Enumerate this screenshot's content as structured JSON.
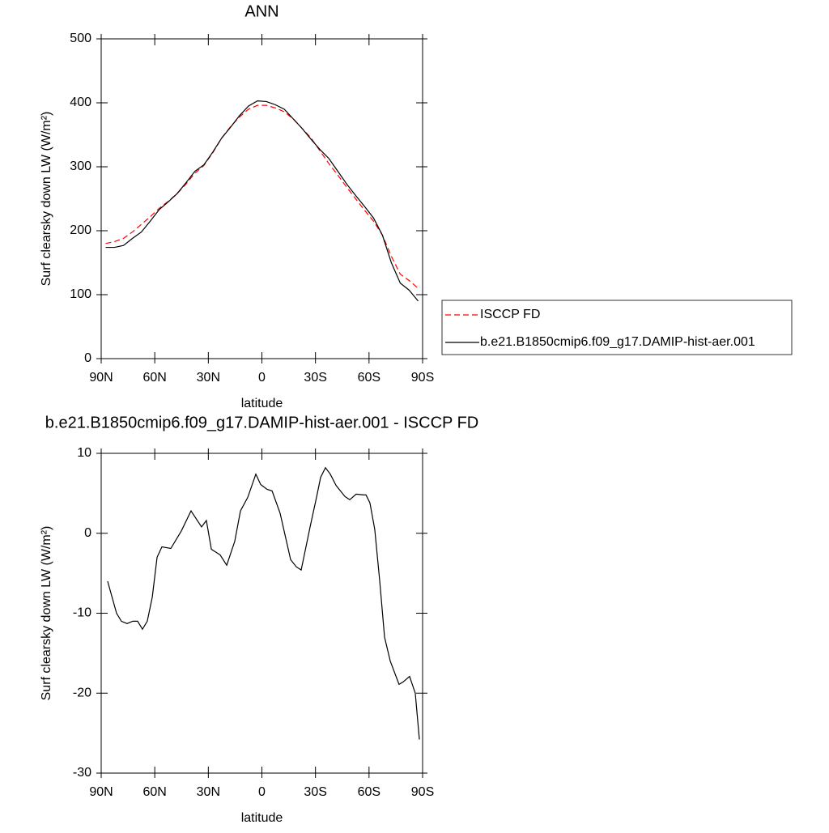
{
  "chart_data": [
    {
      "type": "line",
      "title": "ANN",
      "x_label": "latitude",
      "y_label": "Surf clearsky down LW (W/m²)",
      "xlim": [
        90,
        -90
      ],
      "ylim": [
        0,
        500
      ],
      "xticks": [
        {
          "value": 90,
          "label": "90N"
        },
        {
          "value": 60,
          "label": "60N"
        },
        {
          "value": 30,
          "label": "30N"
        },
        0,
        {
          "value": -30,
          "label": "30S"
        },
        {
          "value": -60,
          "label": "60S"
        },
        {
          "value": -90,
          "label": "90S"
        }
      ],
      "yticks": [
        0,
        100,
        200,
        300,
        400,
        500
      ],
      "legend": "right",
      "x": [
        87.5,
        82.5,
        77.5,
        72.5,
        67.5,
        62.5,
        57.5,
        52.5,
        47.5,
        42.5,
        37.5,
        32.5,
        27.5,
        22.5,
        17.5,
        12.5,
        7.5,
        2.5,
        -2.5,
        -7.5,
        -12.5,
        -17.5,
        -22.5,
        -27.5,
        -32.5,
        -37.5,
        -42.5,
        -47.5,
        -52.5,
        -57.5,
        -62.5,
        -67.5,
        -72.5,
        -77.5,
        -82.5,
        -87.5
      ],
      "series": [
        {
          "name": "ISCCP FD",
          "color": "#ff0000",
          "dashed": true,
          "values": [
            180,
            183,
            188,
            198,
            210,
            222,
            235,
            246,
            258,
            273,
            290,
            302,
            322,
            345,
            363,
            378,
            390,
            396,
            396,
            392,
            386,
            375,
            360,
            345,
            325,
            305,
            287,
            268,
            250,
            232,
            215,
            193,
            160,
            132,
            122,
            110
          ]
        },
        {
          "name": "b.e21.B1850cmip6.f09_g17.DAMIP-hist-aer.001",
          "color": "#000000",
          "dashed": false,
          "values": [
            174,
            174,
            177,
            188,
            198,
            215,
            233,
            245,
            258,
            275,
            293,
            303,
            323,
            345,
            362,
            380,
            395,
            403,
            402,
            397,
            390,
            375,
            360,
            343,
            327,
            313,
            293,
            273,
            255,
            238,
            220,
            193,
            150,
            118,
            107,
            90
          ]
        }
      ]
    },
    {
      "type": "line",
      "title": "b.e21.B1850cmip6.f09_g17.DAMIP-hist-aer.001 - ISCCP FD",
      "x_label": "latitude",
      "y_label": "Surf clearsky down LW (W/m²)",
      "xlim": [
        90,
        -90
      ],
      "ylim": [
        -30,
        10
      ],
      "xticks": [
        {
          "value": 90,
          "label": "90N"
        },
        {
          "value": 60,
          "label": "60N"
        },
        {
          "value": 30,
          "label": "30N"
        },
        0,
        {
          "value": -30,
          "label": "30S"
        },
        {
          "value": -60,
          "label": "60S"
        },
        {
          "value": -90,
          "label": "90S"
        }
      ],
      "yticks": [
        -30,
        -20,
        -10,
        0,
        10
      ],
      "x": [
        86.4,
        81.4,
        78.7,
        75.5,
        72.3,
        69.6,
        66.9,
        64.2,
        61.4,
        58.7,
        56.0,
        51.0,
        45.1,
        39.7,
        33.8,
        31.1,
        28.3,
        23.4,
        19.7,
        15.2,
        12.0,
        7.9,
        3.4,
        0.7,
        -2.9,
        -5.7,
        -10.2,
        -16.1,
        -19.3,
        -22.0,
        -27.0,
        -30.6,
        -32.9,
        -35.6,
        -38.3,
        -41.5,
        -46.5,
        -49.2,
        -52.8,
        -56.9,
        -58.3,
        -60.5,
        -63.2,
        -66.0,
        -68.7,
        -71.9,
        -76.8,
        -79.1,
        -82.7,
        -85.9,
        -88.2
      ],
      "series": [
        {
          "color": "#000000",
          "dashed": false,
          "values": [
            -6,
            -10,
            -11,
            -11.3,
            -11,
            -11,
            -12,
            -11,
            -8,
            -3,
            -1.7,
            -1.9,
            0.3,
            2.8,
            0.8,
            1.6,
            -2,
            -2.7,
            -4,
            -1,
            2.8,
            4.5,
            7.4,
            6.1,
            5.5,
            5.3,
            2.5,
            -3.3,
            -4.2,
            -4.6,
            0.8,
            4.5,
            7.0,
            8.2,
            7.4,
            6,
            4.6,
            4.2,
            4.9,
            4.8,
            4.8,
            3.8,
            0.5,
            -6,
            -13,
            -16,
            -18.9,
            -18.6,
            -17.9,
            -20,
            -25.8
          ]
        }
      ]
    }
  ]
}
